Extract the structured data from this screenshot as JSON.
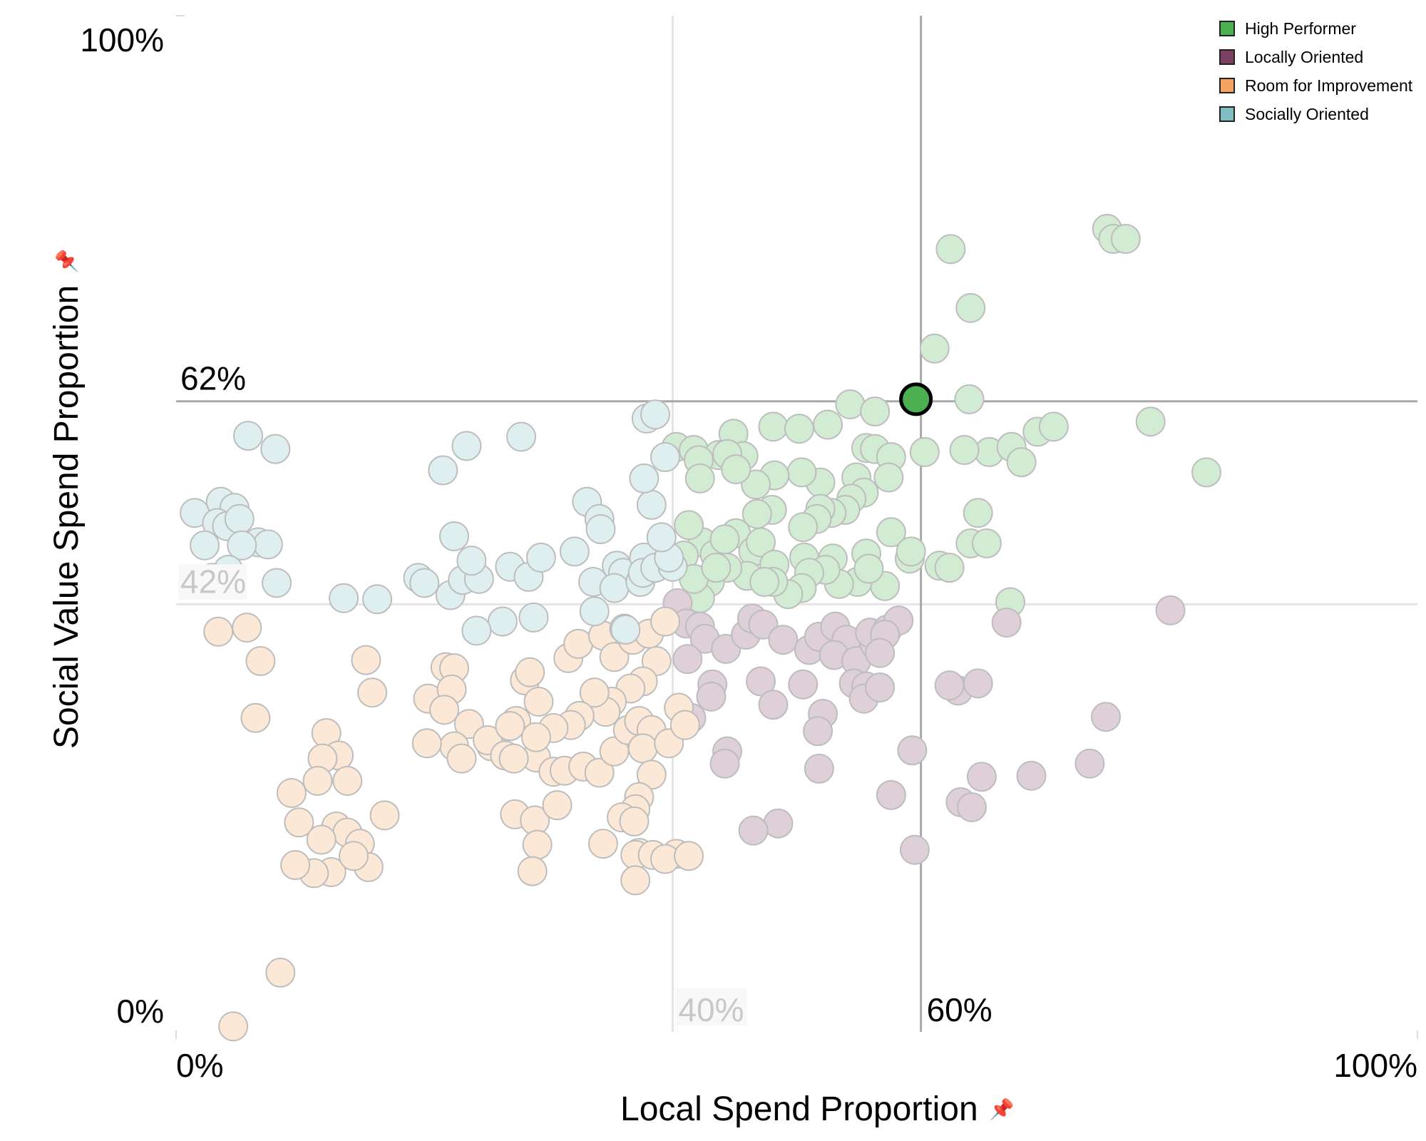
{
  "chart_data": {
    "type": "scatter",
    "xlabel": "Local Spend Proportion",
    "ylabel": "Social Value Spend Proportion",
    "xlim": [
      0,
      100
    ],
    "ylim": [
      0,
      100
    ],
    "x_ticks": [
      "0%",
      "100%"
    ],
    "y_ticks": [
      "0%",
      "100%"
    ],
    "threshold_lines": {
      "primary": {
        "x": 60,
        "y": 62,
        "x_label": "60%",
        "y_label": "62%"
      },
      "secondary": {
        "x": 40,
        "y": 42,
        "x_label": "40%",
        "y_label": "42%"
      }
    },
    "legend": {
      "position": "top-right"
    },
    "highlighted_point": {
      "x": 59.6,
      "y": 62.2,
      "series": "High Performer"
    },
    "series": [
      {
        "name": "High Performer",
        "color": "#4caf50",
        "points": [
          [
            62.4,
            77
          ],
          [
            64,
            71.2
          ],
          [
            61.1,
            67.2
          ],
          [
            63.9,
            62.2
          ],
          [
            75,
            79
          ],
          [
            75.5,
            78
          ],
          [
            76.5,
            78
          ],
          [
            78.5,
            60
          ],
          [
            83,
            55
          ],
          [
            69.4,
            59
          ],
          [
            70.7,
            59.5
          ],
          [
            65.5,
            57
          ],
          [
            67.3,
            57.5
          ],
          [
            68.1,
            56
          ],
          [
            60.3,
            57
          ],
          [
            63.5,
            57.2
          ],
          [
            64.6,
            51
          ],
          [
            64,
            48
          ],
          [
            65.3,
            48
          ],
          [
            61.5,
            45.8
          ],
          [
            59.1,
            46.5
          ],
          [
            62.3,
            45.6
          ],
          [
            67.2,
            42.2
          ],
          [
            40.3,
            57.5
          ],
          [
            41.7,
            57.2
          ],
          [
            44.9,
            58.8
          ],
          [
            48.1,
            59.5
          ],
          [
            50.2,
            59.3
          ],
          [
            52.5,
            59.7
          ],
          [
            54.3,
            61.7
          ],
          [
            56.3,
            61
          ],
          [
            55.6,
            57.4
          ],
          [
            56.3,
            57.3
          ],
          [
            57.6,
            56.5
          ],
          [
            57.4,
            54.5
          ],
          [
            54.8,
            54.5
          ],
          [
            51.9,
            54
          ],
          [
            50.4,
            55
          ],
          [
            48.2,
            54.7
          ],
          [
            46.7,
            53.8
          ],
          [
            45.7,
            56.6
          ],
          [
            43.7,
            56.7
          ],
          [
            42.1,
            56.2
          ],
          [
            42.2,
            54.4
          ],
          [
            44.4,
            56.8
          ],
          [
            45.1,
            55.3
          ],
          [
            55.4,
            53
          ],
          [
            54.4,
            52.4
          ],
          [
            53.9,
            51.3
          ],
          [
            52.8,
            51
          ],
          [
            51.9,
            51.4
          ],
          [
            51.6,
            50.4
          ],
          [
            50.5,
            49.6
          ],
          [
            48,
            51.3
          ],
          [
            46.8,
            50.9
          ],
          [
            45.1,
            49
          ],
          [
            42.4,
            48.1
          ],
          [
            41.3,
            49.8
          ],
          [
            40.9,
            46.8
          ],
          [
            43.4,
            46.9
          ],
          [
            44.2,
            48.4
          ],
          [
            46.5,
            47.2
          ],
          [
            47.1,
            48.1
          ],
          [
            48.2,
            45.9
          ],
          [
            50.6,
            46.6
          ],
          [
            52.9,
            46.5
          ],
          [
            55.6,
            47
          ],
          [
            57.6,
            49.1
          ],
          [
            59.2,
            47.2
          ],
          [
            57.1,
            43.8
          ],
          [
            54.9,
            44.2
          ],
          [
            53.4,
            44
          ],
          [
            52.3,
            45.4
          ],
          [
            51,
            45.1
          ],
          [
            50.4,
            43.6
          ],
          [
            49.3,
            43
          ],
          [
            48.1,
            44.2
          ],
          [
            46,
            44.8
          ],
          [
            44.4,
            45.6
          ],
          [
            43,
            44.2
          ],
          [
            42.2,
            42.6
          ],
          [
            41.7,
            44.5
          ],
          [
            43.5,
            45.6
          ],
          [
            47.4,
            44.2
          ],
          [
            55.8,
            45.5
          ]
        ]
      },
      {
        "name": "Locally Oriented",
        "color": "#7b3f61",
        "points": [
          [
            40.4,
            42.1
          ],
          [
            41.1,
            40.1
          ],
          [
            42.2,
            39.8
          ],
          [
            42.6,
            38.6
          ],
          [
            41.2,
            36.6
          ],
          [
            44.3,
            37.6
          ],
          [
            45.9,
            39
          ],
          [
            46.4,
            40.6
          ],
          [
            47.3,
            40
          ],
          [
            48.9,
            38.5
          ],
          [
            51,
            37.5
          ],
          [
            51.8,
            38.8
          ],
          [
            53.1,
            39.8
          ],
          [
            54,
            38.5
          ],
          [
            53,
            37
          ],
          [
            54.8,
            36.4
          ],
          [
            56.3,
            38
          ],
          [
            55.9,
            39.2
          ],
          [
            57.3,
            39.5
          ],
          [
            58.2,
            40.4
          ],
          [
            57.1,
            39
          ],
          [
            56.7,
            37.2
          ],
          [
            43.2,
            34.1
          ],
          [
            43.1,
            32.9
          ],
          [
            47.1,
            34.4
          ],
          [
            48.1,
            32.1
          ],
          [
            50.5,
            34.1
          ],
          [
            52.1,
            31.2
          ],
          [
            51.7,
            29.5
          ],
          [
            54.6,
            34.2
          ],
          [
            55.6,
            33.9
          ],
          [
            55.4,
            32.7
          ],
          [
            56.7,
            33.8
          ],
          [
            41.5,
            30.8
          ],
          [
            44.4,
            27.5
          ],
          [
            44.2,
            26.3
          ],
          [
            51.8,
            25.8
          ],
          [
            59.3,
            27.6
          ],
          [
            57.6,
            23.2
          ],
          [
            63,
            33.5
          ],
          [
            62.3,
            34
          ],
          [
            64.6,
            34.2
          ],
          [
            66.9,
            40.2
          ],
          [
            74.9,
            30.9
          ],
          [
            80.1,
            41.4
          ],
          [
            73.6,
            26.3
          ],
          [
            68.9,
            25.1
          ],
          [
            64.9,
            25
          ],
          [
            63.2,
            22.5
          ],
          [
            64.1,
            22
          ],
          [
            59.5,
            17.8
          ],
          [
            48.5,
            20.4
          ],
          [
            46.5,
            19.7
          ]
        ]
      },
      {
        "name": "Room for Improvement",
        "color": "#f4a460",
        "points": [
          [
            3.4,
            39.3
          ],
          [
            5.7,
            39.7
          ],
          [
            6.8,
            36.4
          ],
          [
            6.4,
            30.8
          ],
          [
            15.3,
            36.5
          ],
          [
            15.8,
            33.3
          ],
          [
            12.1,
            29.3
          ],
          [
            13.1,
            27.1
          ],
          [
            11.8,
            26.8
          ],
          [
            11.4,
            24.6
          ],
          [
            13.8,
            24.6
          ],
          [
            9.3,
            23.4
          ],
          [
            9.9,
            20.5
          ],
          [
            12.9,
            20.1
          ],
          [
            13.8,
            19.5
          ],
          [
            11.7,
            18.8
          ],
          [
            14.8,
            18.4
          ],
          [
            16.8,
            21.2
          ],
          [
            15.5,
            16.1
          ],
          [
            12.5,
            15.6
          ],
          [
            11.1,
            15.5
          ],
          [
            9.6,
            16.3
          ],
          [
            14.3,
            17.2
          ],
          [
            8.4,
            5.7
          ],
          [
            4.6,
            0.4
          ],
          [
            21.7,
            35.8
          ],
          [
            22.4,
            35.7
          ],
          [
            20.3,
            32.7
          ],
          [
            22.2,
            33.6
          ],
          [
            21.6,
            31.6
          ],
          [
            23.6,
            30.2
          ],
          [
            25.4,
            28
          ],
          [
            25.1,
            28.6
          ],
          [
            22.4,
            28
          ],
          [
            23,
            26.8
          ],
          [
            20.2,
            28.3
          ],
          [
            28.1,
            34.5
          ],
          [
            28.5,
            35.3
          ],
          [
            29.2,
            32.4
          ],
          [
            27.4,
            30.5
          ],
          [
            26.9,
            30
          ],
          [
            29,
            26.9
          ],
          [
            30.4,
            25.5
          ],
          [
            31.3,
            25.6
          ],
          [
            32.8,
            26
          ],
          [
            34.1,
            25.4
          ],
          [
            35.3,
            27.5
          ],
          [
            36.4,
            29.6
          ],
          [
            37.3,
            30.5
          ],
          [
            38.3,
            29.6
          ],
          [
            31.6,
            36.7
          ],
          [
            32.4,
            38.1
          ],
          [
            34.4,
            38.9
          ],
          [
            35.3,
            36.8
          ],
          [
            36.1,
            39.6
          ],
          [
            36.8,
            38.5
          ],
          [
            38.1,
            39.1
          ],
          [
            39.4,
            40.3
          ],
          [
            38.7,
            36.4
          ],
          [
            37.6,
            34.4
          ],
          [
            36.6,
            33.7
          ],
          [
            35.1,
            32.4
          ],
          [
            34.6,
            31.4
          ],
          [
            33.7,
            33.3
          ],
          [
            32.5,
            31
          ],
          [
            31.8,
            30.1
          ],
          [
            30.4,
            29.8
          ],
          [
            29,
            28.9
          ],
          [
            26.5,
            27.1
          ],
          [
            27.2,
            26.8
          ],
          [
            37.6,
            27.8
          ],
          [
            38.3,
            25.2
          ],
          [
            37.3,
            23
          ],
          [
            37,
            21.8
          ],
          [
            35.9,
            21
          ],
          [
            36.9,
            20.6
          ],
          [
            34.4,
            18.4
          ],
          [
            37.3,
            17.5
          ],
          [
            37,
            17.3
          ],
          [
            38.4,
            17.3
          ],
          [
            40.3,
            17.4
          ],
          [
            37,
            14.8
          ],
          [
            27.3,
            21.3
          ],
          [
            28.9,
            20.7
          ],
          [
            30.7,
            22.2
          ],
          [
            29.1,
            18.3
          ],
          [
            28.7,
            15.7
          ],
          [
            39.4,
            16.9
          ],
          [
            41.3,
            17.2
          ],
          [
            39.7,
            28.3
          ],
          [
            40.5,
            31.8
          ],
          [
            41,
            30.1
          ]
        ]
      },
      {
        "name": "Socially Oriented",
        "color": "#7fbfbf",
        "points": [
          [
            1.5,
            51
          ],
          [
            3.6,
            52.1
          ],
          [
            4.7,
            51.5
          ],
          [
            3.3,
            50
          ],
          [
            4.1,
            49.7
          ],
          [
            5.1,
            50.4
          ],
          [
            6.6,
            48.1
          ],
          [
            7.4,
            47.9
          ],
          [
            5.3,
            47.8
          ],
          [
            2.3,
            47.8
          ],
          [
            4.2,
            45.4
          ],
          [
            2.9,
            44.6
          ],
          [
            8.1,
            44.1
          ],
          [
            5.8,
            58.6
          ],
          [
            8,
            57.3
          ],
          [
            13.5,
            42.6
          ],
          [
            16.2,
            42.5
          ],
          [
            19.5,
            44.6
          ],
          [
            20,
            44.1
          ],
          [
            22.1,
            42.9
          ],
          [
            23.1,
            44.4
          ],
          [
            24.4,
            44.5
          ],
          [
            23.8,
            46.3
          ],
          [
            22.4,
            48.7
          ],
          [
            23.4,
            57.6
          ],
          [
            21.5,
            55.2
          ],
          [
            26.9,
            45.7
          ],
          [
            28.4,
            44.7
          ],
          [
            29.4,
            46.6
          ],
          [
            32.1,
            47.2
          ],
          [
            33.1,
            52.1
          ],
          [
            34.1,
            50.4
          ],
          [
            34.2,
            49.4
          ],
          [
            35.5,
            45.8
          ],
          [
            33.6,
            44.2
          ],
          [
            36,
            45.1
          ],
          [
            35.3,
            43.6
          ],
          [
            37.4,
            44.2
          ],
          [
            37.7,
            46.6
          ],
          [
            37.6,
            45.1
          ],
          [
            38.6,
            45.6
          ],
          [
            40,
            45.7
          ],
          [
            39.7,
            46.6
          ],
          [
            39.1,
            48.6
          ],
          [
            38.3,
            51.8
          ],
          [
            37.7,
            54.4
          ],
          [
            27.8,
            58.5
          ],
          [
            37.9,
            60.3
          ],
          [
            38.6,
            60.7
          ],
          [
            39.4,
            56.5
          ],
          [
            36.2,
            39.5
          ],
          [
            33.7,
            41.3
          ],
          [
            28.8,
            40.7
          ],
          [
            26.3,
            40.3
          ],
          [
            24.2,
            39.4
          ]
        ]
      }
    ]
  }
}
